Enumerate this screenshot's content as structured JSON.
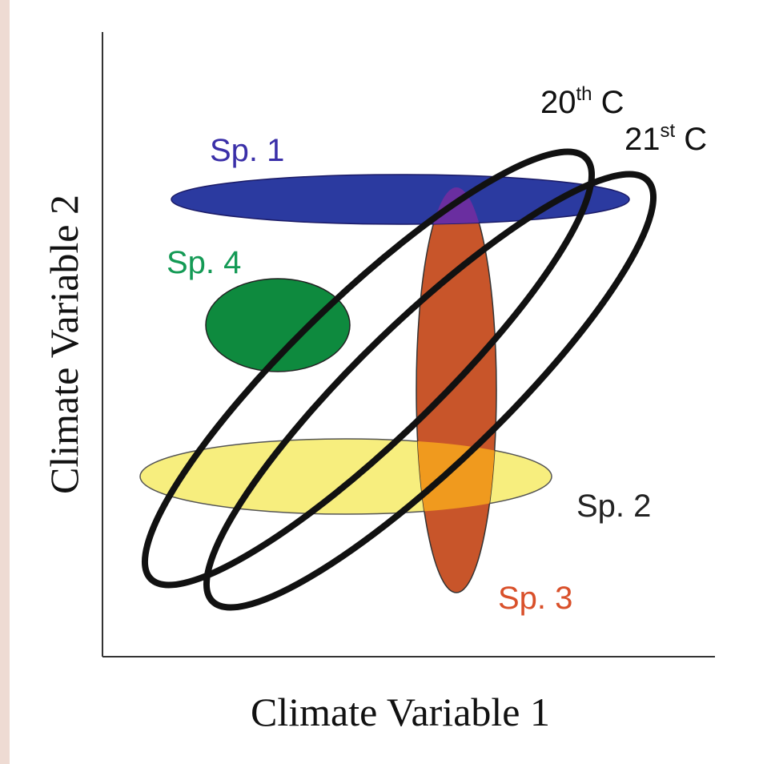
{
  "axes": {
    "x_label": "Climate Variable 1",
    "y_label": "Climate Variable 2"
  },
  "species": [
    {
      "id": "sp1",
      "label": "Sp. 1",
      "color": "#2b3aa0",
      "label_color": "#3a2fa8"
    },
    {
      "id": "sp2",
      "label": "Sp. 2",
      "color": "#f7ee7e",
      "label_color": "#222222"
    },
    {
      "id": "sp3",
      "label": "Sp. 3",
      "color": "#c8552a",
      "label_color": "#d9502a"
    },
    {
      "id": "sp4",
      "label": "Sp. 4",
      "color": "#0e8a3e",
      "label_color": "#149a55"
    }
  ],
  "climate_envelopes": [
    {
      "id": "c20",
      "label_base": "20",
      "label_sup": "th",
      "label_suffix": " C"
    },
    {
      "id": "c21",
      "label_base": "21",
      "label_sup": "st",
      "label_suffix": " C"
    }
  ],
  "overlaps": {
    "sp1_sp3": "#6a2ea0",
    "sp2_sp3": "#f09a1e"
  }
}
